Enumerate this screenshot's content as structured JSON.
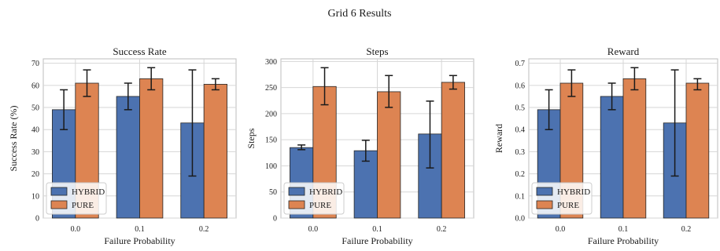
{
  "figure": {
    "title": "Grid 6 Results"
  },
  "colors": {
    "hybrid": "#4c72b0",
    "pure": "#dd8452",
    "grid": "#d6d6d6",
    "frame": "#bdbdbd"
  },
  "chart_data": [
    {
      "type": "bar",
      "title": "Success Rate",
      "xlabel": "Failure Probability",
      "ylabel": "Success Rate (%)",
      "categories": [
        "0.0",
        "0.1",
        "0.2"
      ],
      "ylim": [
        0,
        72
      ],
      "yticks": [
        "0",
        "10",
        "20",
        "30",
        "40",
        "50",
        "60",
        "70"
      ],
      "grid": true,
      "legend": "lower-left",
      "series": [
        {
          "name": "HYBRID",
          "values": [
            49,
            55,
            43
          ],
          "err_low": [
            40,
            49,
            19
          ],
          "err_high": [
            58,
            61,
            67
          ]
        },
        {
          "name": "PURE",
          "values": [
            61,
            63,
            60.5
          ],
          "err_low": [
            55,
            58,
            58
          ],
          "err_high": [
            67,
            68,
            63
          ]
        }
      ]
    },
    {
      "type": "bar",
      "title": "Steps",
      "xlabel": "Failure Probability",
      "ylabel": "Steps",
      "categories": [
        "0.0",
        "0.1",
        "0.2"
      ],
      "ylim": [
        0,
        305
      ],
      "yticks": [
        "0",
        "50",
        "100",
        "150",
        "200",
        "250",
        "300"
      ],
      "grid": true,
      "legend": "lower-left",
      "series": [
        {
          "name": "HYBRID",
          "values": [
            135,
            129,
            161
          ],
          "err_low": [
            131,
            109,
            96
          ],
          "err_high": [
            140,
            149,
            224
          ]
        },
        {
          "name": "PURE",
          "values": [
            252,
            242,
            260
          ],
          "err_low": [
            217,
            212,
            247
          ],
          "err_high": [
            288,
            273,
            273
          ]
        }
      ]
    },
    {
      "type": "bar",
      "title": "Reward",
      "xlabel": "Failure Probability",
      "ylabel": "Reward",
      "categories": [
        "0.0",
        "0.1",
        "0.2"
      ],
      "ylim": [
        0,
        0.72
      ],
      "yticks": [
        "0.0",
        "0.1",
        "0.2",
        "0.3",
        "0.4",
        "0.5",
        "0.6",
        "0.7"
      ],
      "grid": true,
      "legend": "lower-left",
      "series": [
        {
          "name": "HYBRID",
          "values": [
            0.49,
            0.55,
            0.43
          ],
          "err_low": [
            0.4,
            0.49,
            0.19
          ],
          "err_high": [
            0.58,
            0.61,
            0.67
          ]
        },
        {
          "name": "PURE",
          "values": [
            0.61,
            0.63,
            0.61
          ],
          "err_low": [
            0.55,
            0.58,
            0.58
          ],
          "err_high": [
            0.67,
            0.68,
            0.63
          ]
        }
      ]
    }
  ]
}
